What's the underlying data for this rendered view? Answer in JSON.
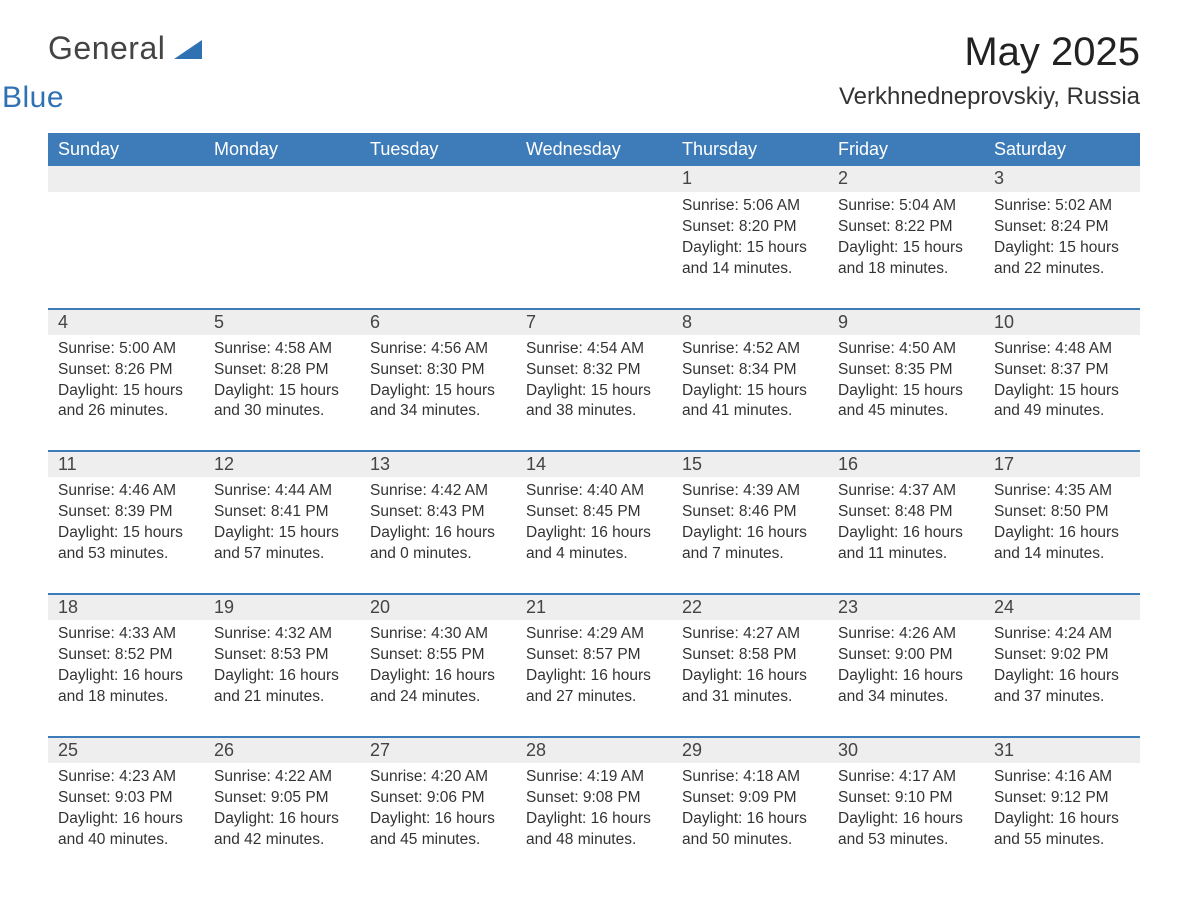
{
  "logo": {
    "word1": "General",
    "word2": "Blue"
  },
  "title": "May 2025",
  "location": "Verkhnedneprovskiy, Russia",
  "colors": {
    "header_bg": "#3d7cb9",
    "header_text": "#ffffff",
    "daynum_bg": "#eeeeee",
    "border_top": "#3d7cb9",
    "text": "#333333",
    "logo_gray": "#444444",
    "logo_blue": "#2f71b3",
    "background": "#ffffff"
  },
  "typography": {
    "month_title_size": 40,
    "location_size": 24,
    "weekday_size": 18,
    "daynum_size": 18,
    "detail_size": 15.5
  },
  "weekdays": [
    "Sunday",
    "Monday",
    "Tuesday",
    "Wednesday",
    "Thursday",
    "Friday",
    "Saturday"
  ],
  "weeks": [
    [
      null,
      null,
      null,
      null,
      {
        "n": "1",
        "sunrise": "5:06 AM",
        "sunset": "8:20 PM",
        "day_h": "15",
        "day_m": "14"
      },
      {
        "n": "2",
        "sunrise": "5:04 AM",
        "sunset": "8:22 PM",
        "day_h": "15",
        "day_m": "18"
      },
      {
        "n": "3",
        "sunrise": "5:02 AM",
        "sunset": "8:24 PM",
        "day_h": "15",
        "day_m": "22"
      }
    ],
    [
      {
        "n": "4",
        "sunrise": "5:00 AM",
        "sunset": "8:26 PM",
        "day_h": "15",
        "day_m": "26"
      },
      {
        "n": "5",
        "sunrise": "4:58 AM",
        "sunset": "8:28 PM",
        "day_h": "15",
        "day_m": "30"
      },
      {
        "n": "6",
        "sunrise": "4:56 AM",
        "sunset": "8:30 PM",
        "day_h": "15",
        "day_m": "34"
      },
      {
        "n": "7",
        "sunrise": "4:54 AM",
        "sunset": "8:32 PM",
        "day_h": "15",
        "day_m": "38"
      },
      {
        "n": "8",
        "sunrise": "4:52 AM",
        "sunset": "8:34 PM",
        "day_h": "15",
        "day_m": "41"
      },
      {
        "n": "9",
        "sunrise": "4:50 AM",
        "sunset": "8:35 PM",
        "day_h": "15",
        "day_m": "45"
      },
      {
        "n": "10",
        "sunrise": "4:48 AM",
        "sunset": "8:37 PM",
        "day_h": "15",
        "day_m": "49"
      }
    ],
    [
      {
        "n": "11",
        "sunrise": "4:46 AM",
        "sunset": "8:39 PM",
        "day_h": "15",
        "day_m": "53"
      },
      {
        "n": "12",
        "sunrise": "4:44 AM",
        "sunset": "8:41 PM",
        "day_h": "15",
        "day_m": "57"
      },
      {
        "n": "13",
        "sunrise": "4:42 AM",
        "sunset": "8:43 PM",
        "day_h": "16",
        "day_m": "0"
      },
      {
        "n": "14",
        "sunrise": "4:40 AM",
        "sunset": "8:45 PM",
        "day_h": "16",
        "day_m": "4"
      },
      {
        "n": "15",
        "sunrise": "4:39 AM",
        "sunset": "8:46 PM",
        "day_h": "16",
        "day_m": "7"
      },
      {
        "n": "16",
        "sunrise": "4:37 AM",
        "sunset": "8:48 PM",
        "day_h": "16",
        "day_m": "11"
      },
      {
        "n": "17",
        "sunrise": "4:35 AM",
        "sunset": "8:50 PM",
        "day_h": "16",
        "day_m": "14"
      }
    ],
    [
      {
        "n": "18",
        "sunrise": "4:33 AM",
        "sunset": "8:52 PM",
        "day_h": "16",
        "day_m": "18"
      },
      {
        "n": "19",
        "sunrise": "4:32 AM",
        "sunset": "8:53 PM",
        "day_h": "16",
        "day_m": "21"
      },
      {
        "n": "20",
        "sunrise": "4:30 AM",
        "sunset": "8:55 PM",
        "day_h": "16",
        "day_m": "24"
      },
      {
        "n": "21",
        "sunrise": "4:29 AM",
        "sunset": "8:57 PM",
        "day_h": "16",
        "day_m": "27"
      },
      {
        "n": "22",
        "sunrise": "4:27 AM",
        "sunset": "8:58 PM",
        "day_h": "16",
        "day_m": "31"
      },
      {
        "n": "23",
        "sunrise": "4:26 AM",
        "sunset": "9:00 PM",
        "day_h": "16",
        "day_m": "34"
      },
      {
        "n": "24",
        "sunrise": "4:24 AM",
        "sunset": "9:02 PM",
        "day_h": "16",
        "day_m": "37"
      }
    ],
    [
      {
        "n": "25",
        "sunrise": "4:23 AM",
        "sunset": "9:03 PM",
        "day_h": "16",
        "day_m": "40"
      },
      {
        "n": "26",
        "sunrise": "4:22 AM",
        "sunset": "9:05 PM",
        "day_h": "16",
        "day_m": "42"
      },
      {
        "n": "27",
        "sunrise": "4:20 AM",
        "sunset": "9:06 PM",
        "day_h": "16",
        "day_m": "45"
      },
      {
        "n": "28",
        "sunrise": "4:19 AM",
        "sunset": "9:08 PM",
        "day_h": "16",
        "day_m": "48"
      },
      {
        "n": "29",
        "sunrise": "4:18 AM",
        "sunset": "9:09 PM",
        "day_h": "16",
        "day_m": "50"
      },
      {
        "n": "30",
        "sunrise": "4:17 AM",
        "sunset": "9:10 PM",
        "day_h": "16",
        "day_m": "53"
      },
      {
        "n": "31",
        "sunrise": "4:16 AM",
        "sunset": "9:12 PM",
        "day_h": "16",
        "day_m": "55"
      }
    ]
  ],
  "labels": {
    "sunrise": "Sunrise:",
    "sunset": "Sunset:",
    "daylight": "Daylight:",
    "hours": "hours",
    "and": "and",
    "minutes": "minutes."
  }
}
